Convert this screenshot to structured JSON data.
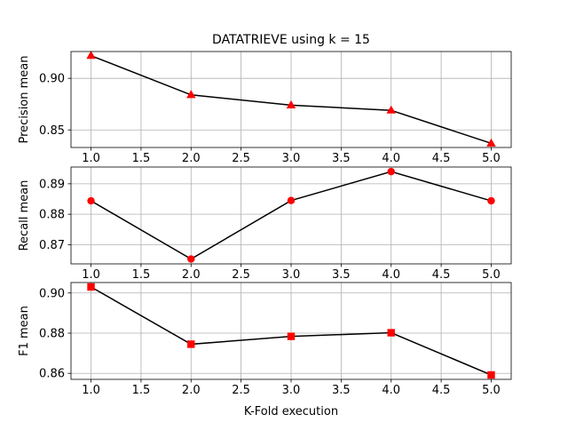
{
  "chart_data": {
    "title": "DATATRIEVE using k = 15",
    "xlabel": "K-Fold execution",
    "grid": true,
    "x": [
      1.0,
      2.0,
      3.0,
      4.0,
      5.0
    ],
    "xlim": [
      0.8,
      5.2
    ],
    "x_ticks": [
      1.0,
      1.5,
      2.0,
      2.5,
      3.0,
      3.5,
      4.0,
      4.5,
      5.0
    ],
    "x_tick_labels": [
      "1.0",
      "1.5",
      "2.0",
      "2.5",
      "3.0",
      "3.5",
      "4.0",
      "4.5",
      "5.0"
    ],
    "line_color": "#000000",
    "marker_color": "#ff0000",
    "grid_color": "#b0b0b0",
    "subplots": [
      {
        "type": "line",
        "ylabel": "Precision mean",
        "marker": "triangle",
        "values": [
          0.922,
          0.884,
          0.874,
          0.869,
          0.837
        ],
        "ylim": [
          0.833,
          0.926
        ],
        "y_ticks": [
          0.85,
          0.9
        ],
        "y_tick_labels": [
          "0.85",
          "0.90"
        ]
      },
      {
        "type": "line",
        "ylabel": "Recall mean",
        "marker": "circle",
        "values": [
          0.8844,
          0.8653,
          0.8845,
          0.894,
          0.8844
        ],
        "ylim": [
          0.8637,
          0.8955
        ],
        "y_ticks": [
          0.87,
          0.88,
          0.89
        ],
        "y_tick_labels": [
          "0.87",
          "0.88",
          "0.89"
        ]
      },
      {
        "type": "line",
        "ylabel": "F1 mean",
        "marker": "square",
        "values": [
          0.903,
          0.8745,
          0.8784,
          0.8802,
          0.8592
        ],
        "ylim": [
          0.857,
          0.9052
        ],
        "y_ticks": [
          0.86,
          0.88,
          0.9
        ],
        "y_tick_labels": [
          "0.86",
          "0.88",
          "0.90"
        ]
      }
    ]
  }
}
